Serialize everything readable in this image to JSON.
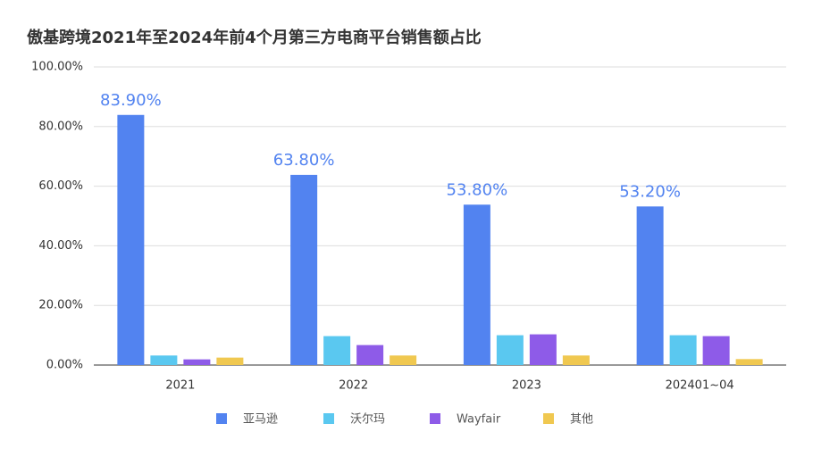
{
  "chart_data": {
    "type": "bar",
    "title": "傲基跨境2021年至2024年前4个月第三方电商平台销售额占比",
    "categories": [
      "2021",
      "2022",
      "2023",
      "202401~04"
    ],
    "series": [
      {
        "name": "亚马逊",
        "color": "#5283f0",
        "values": [
          83.9,
          63.8,
          53.8,
          53.2
        ],
        "value_labels": [
          "83.90%",
          "63.80%",
          "53.80%",
          "53.20%"
        ]
      },
      {
        "name": "沃尔玛",
        "color": "#5ac8f0",
        "values": [
          3.2,
          9.7,
          10.0,
          10.0
        ]
      },
      {
        "name": "Wayfair",
        "color": "#8e5be8",
        "values": [
          1.9,
          6.7,
          10.3,
          9.7
        ]
      },
      {
        "name": "其他",
        "color": "#f0c850",
        "values": [
          2.5,
          3.2,
          3.2,
          2.0
        ]
      }
    ],
    "ylim": [
      0,
      100
    ],
    "yticks": [
      {
        "value": 0,
        "label": "0.00%"
      },
      {
        "value": 20,
        "label": "20.00%"
      },
      {
        "value": 40,
        "label": "40.00%"
      },
      {
        "value": 60,
        "label": "60.00%"
      },
      {
        "value": 80,
        "label": "80.00%"
      },
      {
        "value": 100,
        "label": "100.00%"
      }
    ],
    "grid": true,
    "legend": "bottom"
  }
}
